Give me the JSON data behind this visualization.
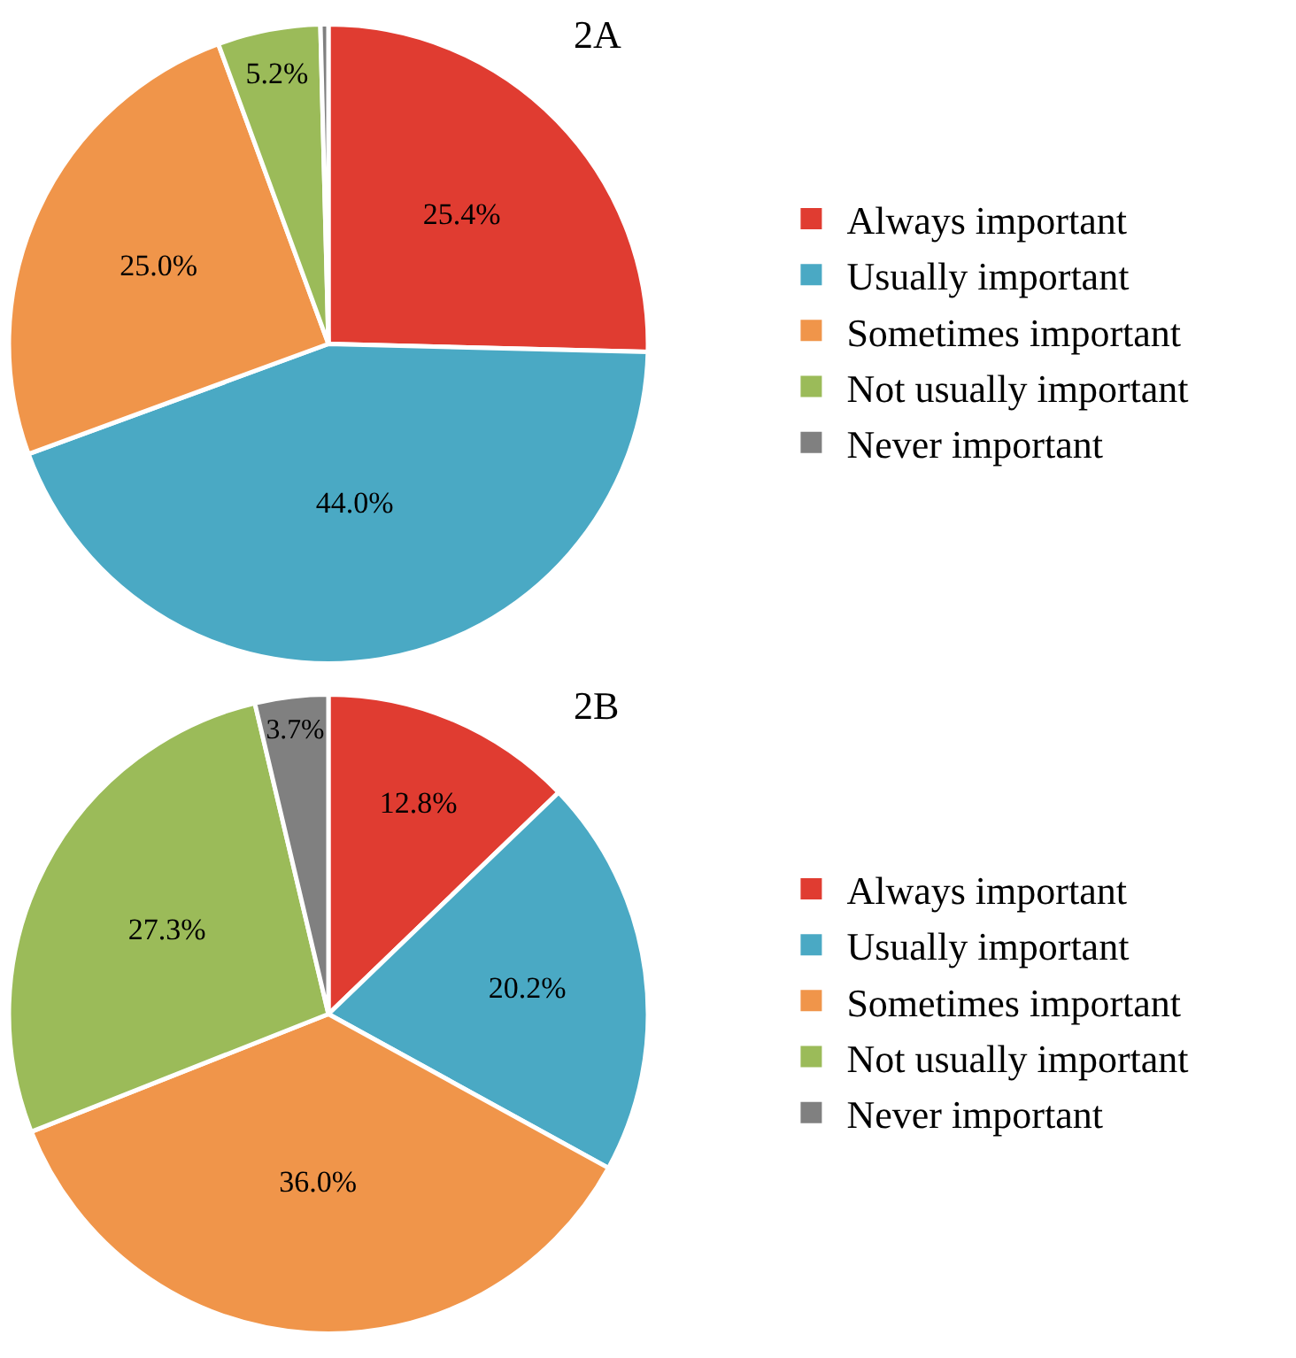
{
  "chart_data": [
    {
      "type": "pie",
      "title": "2A",
      "categories": [
        "Always important",
        "Usually important",
        "Sometimes important",
        "Not usually important",
        "Never important"
      ],
      "values": [
        25.4,
        44.0,
        25.0,
        5.2,
        0.4
      ],
      "value_labels": [
        "25.4%",
        "44.0%",
        "25.0%",
        "5.2%",
        null
      ],
      "colors": [
        "#e03c31",
        "#4aa9c4",
        "#f0954a",
        "#9bbb59",
        "#808080"
      ],
      "legend": "right"
    },
    {
      "type": "pie",
      "title": "2B",
      "categories": [
        "Always important",
        "Usually important",
        "Sometimes important",
        "Not usually important",
        "Never important"
      ],
      "values": [
        12.8,
        20.2,
        36.0,
        27.3,
        3.7
      ],
      "value_labels": [
        "12.8%",
        "20.2%",
        "36.0%",
        "27.3%",
        "3.7%"
      ],
      "colors": [
        "#e03c31",
        "#4aa9c4",
        "#f0954a",
        "#9bbb59",
        "#808080"
      ],
      "legend": "right"
    }
  ]
}
